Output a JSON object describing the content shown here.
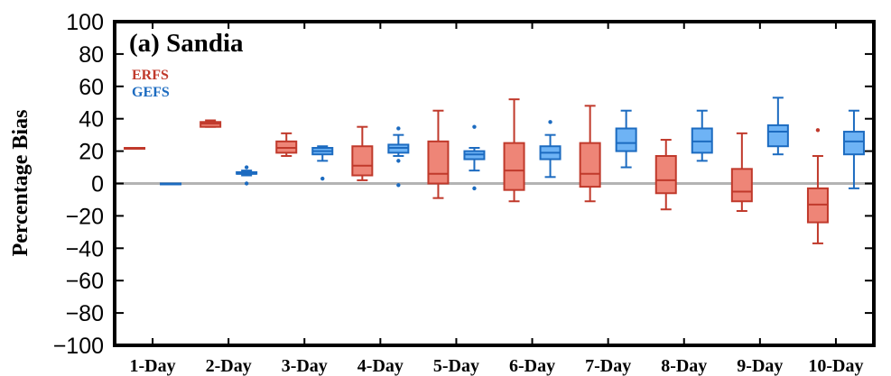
{
  "chart_data": {
    "type": "boxplot",
    "title": "(a) Sandia",
    "ylabel": "Percentage Bias",
    "xlabel": "",
    "ylim": [
      -100,
      100
    ],
    "yticks": [
      100,
      80,
      60,
      40,
      20,
      0,
      -20,
      -40,
      -60,
      -80,
      -100
    ],
    "categories": [
      "1-Day",
      "2-Day",
      "3-Day",
      "4-Day",
      "5-Day",
      "6-Day",
      "7-Day",
      "8-Day",
      "9-Day",
      "10-Day"
    ],
    "zero_line": true,
    "legend_position": "top-left",
    "series": [
      {
        "name": "ERFS",
        "stroke": "#c0392b",
        "fill": "#ee8577",
        "label_color": "#c0392b",
        "boxes": [
          {
            "min": 22,
            "q1": 22,
            "median": 22,
            "q3": 22,
            "max": 22,
            "outliers": []
          },
          {
            "min": 35,
            "q1": 35,
            "median": 37,
            "q3": 38,
            "max": 39,
            "outliers": []
          },
          {
            "min": 17,
            "q1": 19,
            "median": 22,
            "q3": 26,
            "max": 31,
            "outliers": []
          },
          {
            "min": 2,
            "q1": 5,
            "median": 11,
            "q3": 23,
            "max": 35,
            "outliers": []
          },
          {
            "min": -9,
            "q1": 0,
            "median": 6,
            "q3": 26,
            "max": 45,
            "outliers": []
          },
          {
            "min": -11,
            "q1": -4,
            "median": 8,
            "q3": 25,
            "max": 52,
            "outliers": []
          },
          {
            "min": -11,
            "q1": -2,
            "median": 6,
            "q3": 25,
            "max": 48,
            "outliers": []
          },
          {
            "min": -16,
            "q1": -6,
            "median": 2,
            "q3": 17,
            "max": 27,
            "outliers": []
          },
          {
            "min": -17,
            "q1": -11,
            "median": -5,
            "q3": 9,
            "max": 31,
            "outliers": []
          },
          {
            "min": -37,
            "q1": -24,
            "median": -13,
            "q3": -3,
            "max": 17,
            "outliers": [
              33
            ]
          }
        ]
      },
      {
        "name": "GEFS",
        "stroke": "#1c6bc0",
        "fill": "#6eb3f5",
        "label_color": "#1c6bc0",
        "boxes": [
          {
            "min": 0,
            "q1": 0,
            "median": 0,
            "q3": 0,
            "max": 0,
            "outliers": []
          },
          {
            "min": 5,
            "q1": 6,
            "median": 6,
            "q3": 7,
            "max": 8,
            "outliers": [
              0,
              10
            ]
          },
          {
            "min": 14,
            "q1": 18,
            "median": 20,
            "q3": 22,
            "max": 23,
            "outliers": [
              3
            ]
          },
          {
            "min": 17,
            "q1": 19,
            "median": 22,
            "q3": 24,
            "max": 30,
            "outliers": [
              -1,
              14,
              34
            ]
          },
          {
            "min": 8,
            "q1": 15,
            "median": 18,
            "q3": 20,
            "max": 22,
            "outliers": [
              -3,
              35
            ]
          },
          {
            "min": 4,
            "q1": 15,
            "median": 19,
            "q3": 23,
            "max": 30,
            "outliers": [
              38
            ]
          },
          {
            "min": 10,
            "q1": 20,
            "median": 25,
            "q3": 34,
            "max": 45,
            "outliers": []
          },
          {
            "min": 14,
            "q1": 19,
            "median": 26,
            "q3": 34,
            "max": 45,
            "outliers": []
          },
          {
            "min": 18,
            "q1": 23,
            "median": 32,
            "q3": 36,
            "max": 53,
            "outliers": []
          },
          {
            "min": -3,
            "q1": 18,
            "median": 26,
            "q3": 32,
            "max": 45,
            "outliers": []
          }
        ]
      }
    ]
  }
}
